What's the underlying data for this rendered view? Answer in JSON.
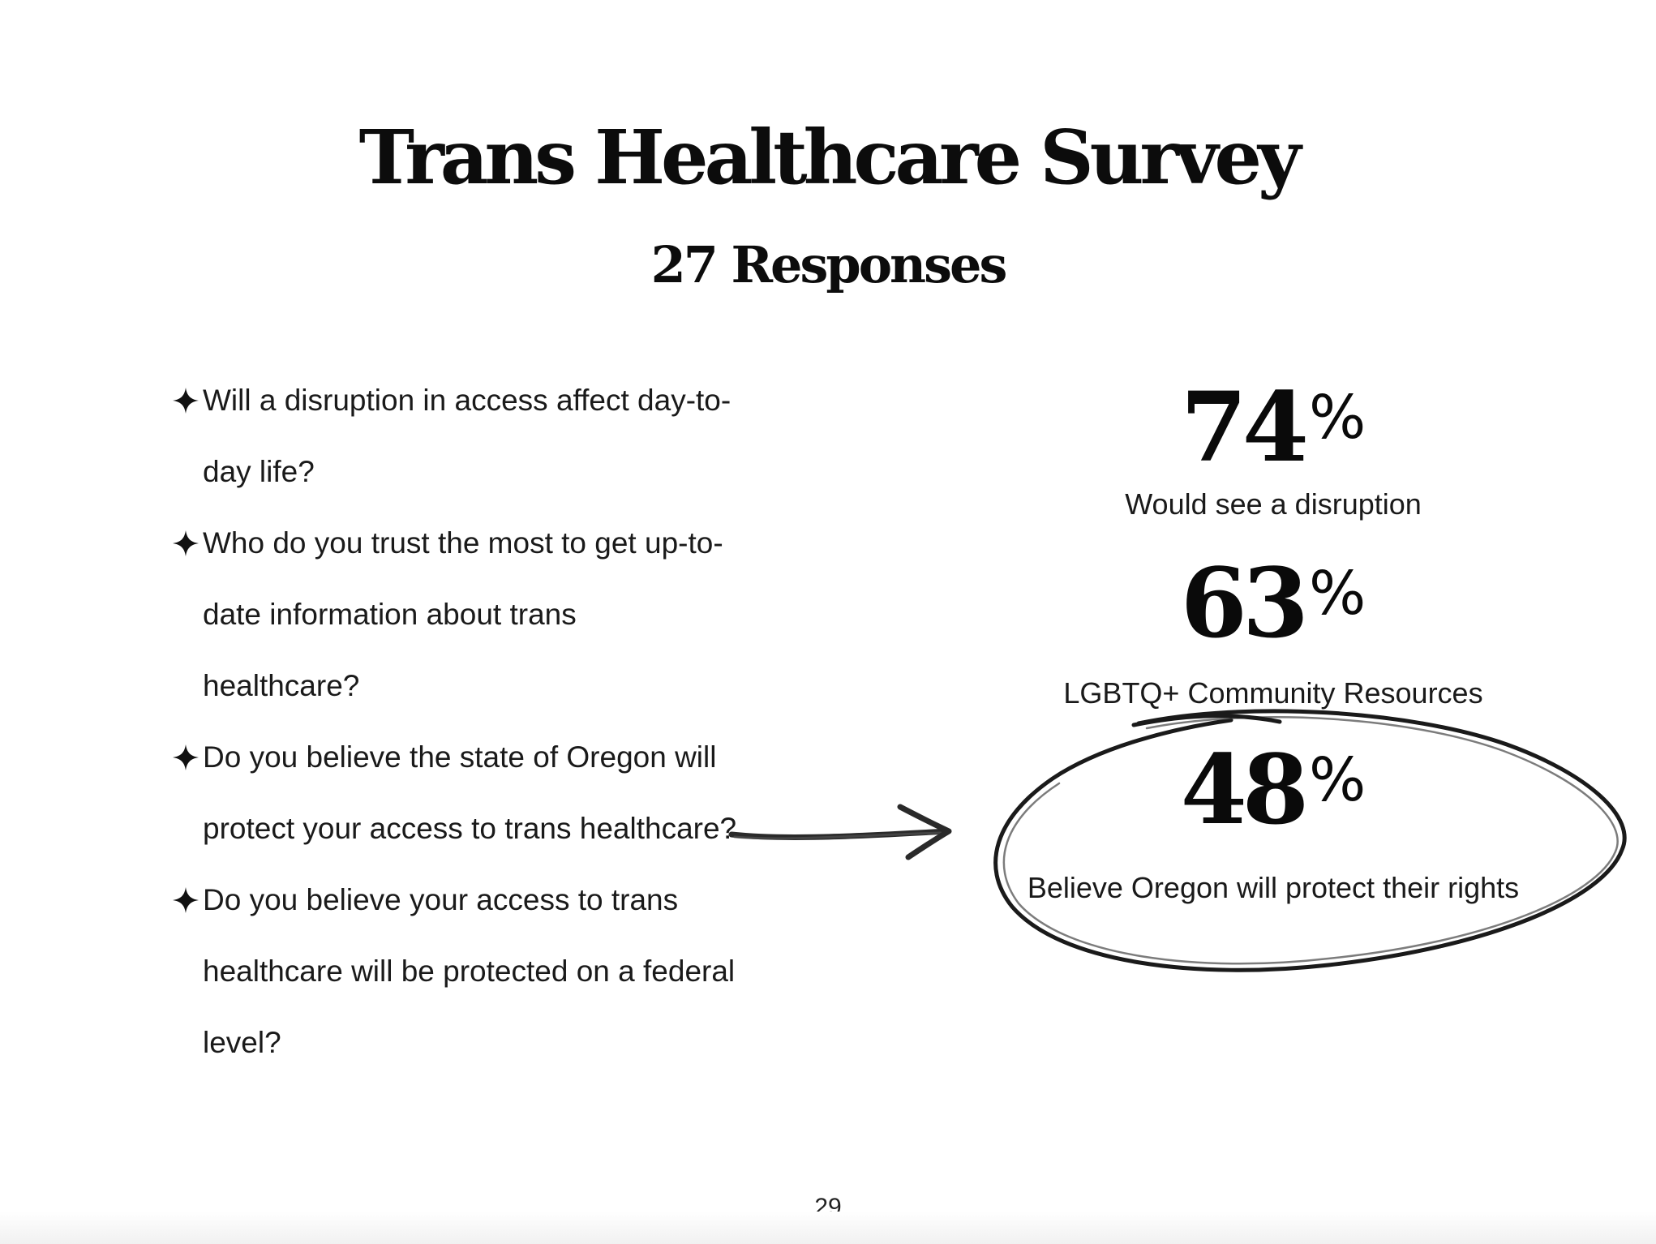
{
  "title": "Trans Healthcare Survey",
  "subtitle": "27 Responses",
  "questions": [
    "Will a disruption in access affect day-to-day life?",
    "Who do you trust the most to get up-to-date information about trans healthcare?",
    "Do you believe the state of Oregon will protect your access to trans healthcare?",
    "Do you believe your access to trans healthcare will be protected on a federal level?"
  ],
  "bullet_icon": "four-point-star-icon",
  "stats": [
    {
      "value": "74",
      "percent_sign": "%",
      "label": "Would see a disruption"
    },
    {
      "value": "63",
      "percent_sign": "%",
      "label": "LGBTQ+ Community Resources"
    },
    {
      "value": "48",
      "percent_sign": "%",
      "label": "Believe Oregon will protect their rights",
      "highlighted": true
    }
  ],
  "annotations": {
    "arrow_icon": "hand-drawn-arrow-icon",
    "highlight_icon": "hand-drawn-circle-icon"
  },
  "page_number": "29"
}
